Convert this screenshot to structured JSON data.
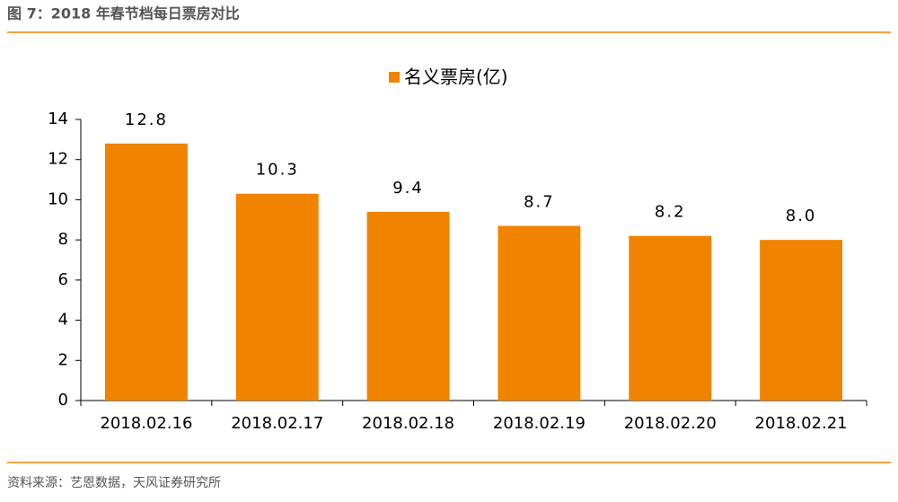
{
  "chart_data": {
    "type": "bar",
    "title": "图 7：2018 年春节档每日票房对比",
    "source": "资料来源：艺恩数据，天风证券研究所",
    "categories": [
      "2018.02.16",
      "2018.02.17",
      "2018.02.18",
      "2018.02.19",
      "2018.02.20",
      "2018.02.21"
    ],
    "series": [
      {
        "name": "名义票房(亿)",
        "color": "#f08300",
        "values": [
          12.8,
          10.3,
          9.4,
          8.7,
          8.2,
          8.0
        ],
        "value_labels": [
          "12.8",
          "10.3",
          "9.4",
          "8.7",
          "8.2",
          "8.0"
        ]
      }
    ],
    "ylim": [
      0,
      14
    ],
    "yticks": [
      0,
      2,
      4,
      6,
      8,
      10,
      12,
      14
    ],
    "grid": false,
    "legend": "top"
  }
}
